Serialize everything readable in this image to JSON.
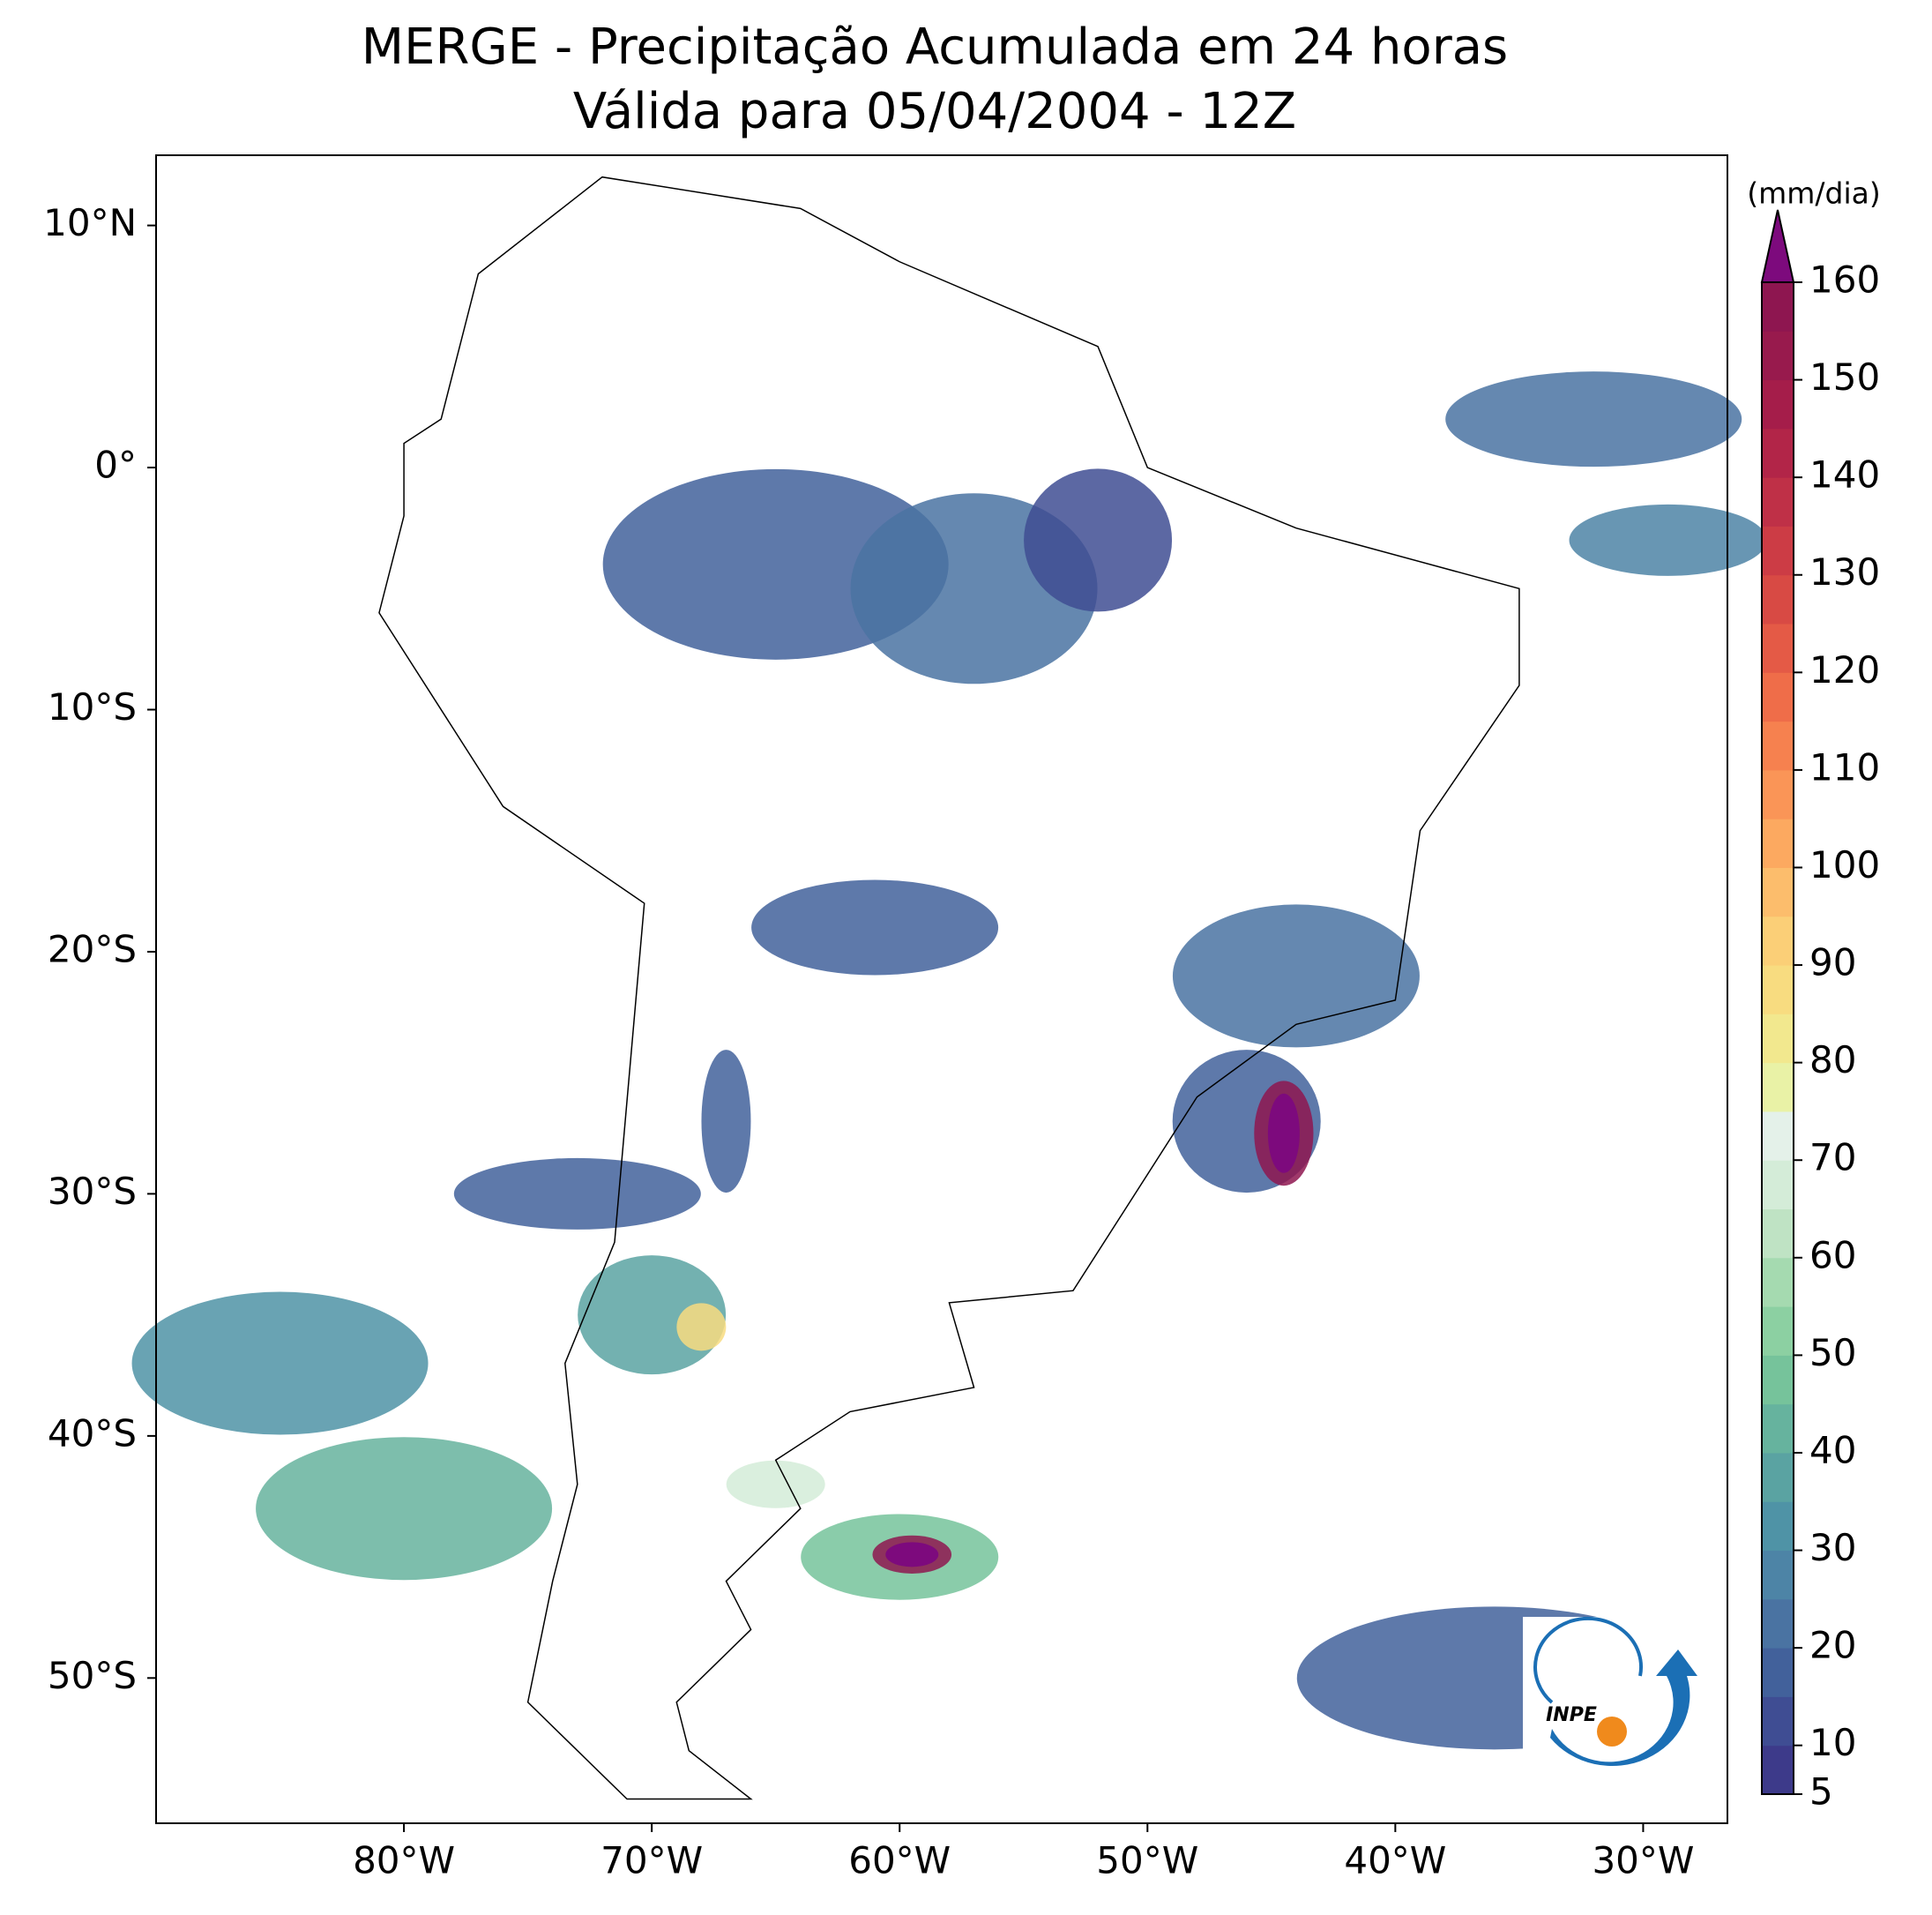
{
  "chart_data": {
    "type": "map",
    "title": "MERGE - Precipitação Acumulada em 24 horas",
    "subtitle": "Válida para 05/04/2004 - 12Z",
    "xlim": [
      -90,
      -26.6
    ],
    "ylim": [
      -56,
      12.9
    ],
    "xticks": [
      {
        "value": -80,
        "label": "80°W"
      },
      {
        "value": -70,
        "label": "70°W"
      },
      {
        "value": -60,
        "label": "60°W"
      },
      {
        "value": -50,
        "label": "50°W"
      },
      {
        "value": -40,
        "label": "40°W"
      },
      {
        "value": -30,
        "label": "30°W"
      }
    ],
    "yticks": [
      {
        "value": 10,
        "label": "10°N"
      },
      {
        "value": 0,
        "label": "0°"
      },
      {
        "value": -10,
        "label": "10°S"
      },
      {
        "value": -20,
        "label": "20°S"
      },
      {
        "value": -30,
        "label": "30°S"
      },
      {
        "value": -40,
        "label": "40°S"
      },
      {
        "value": -50,
        "label": "50°S"
      }
    ],
    "colorbar": {
      "label": "(mm/dia)",
      "lim": [
        5,
        160
      ],
      "ticks": [
        5,
        10,
        20,
        30,
        40,
        50,
        60,
        70,
        80,
        90,
        100,
        110,
        120,
        130,
        140,
        150,
        160
      ],
      "colors": [
        "#3d3a8a",
        "#3f4d93",
        "#42619b",
        "#4a73a2",
        "#4d84a6",
        "#4f93a6",
        "#5aa3a2",
        "#66b39e",
        "#76c39b",
        "#8cd0a2",
        "#a5dab0",
        "#bfe3c4",
        "#d4ecd8",
        "#e4f1e9",
        "#e9f2a6",
        "#f2e88e",
        "#f8dc80",
        "#fbcf77",
        "#fcbd6c",
        "#fca960",
        "#fa9557",
        "#f6814f",
        "#ef6d49",
        "#e45a46",
        "#d84a44",
        "#cc3c45",
        "#bf3047",
        "#b22548",
        "#a51d4a",
        "#981a4d",
        "#8e1650"
      ],
      "extend_color": "#7d0a7d"
    },
    "logo_text": "INPE"
  }
}
